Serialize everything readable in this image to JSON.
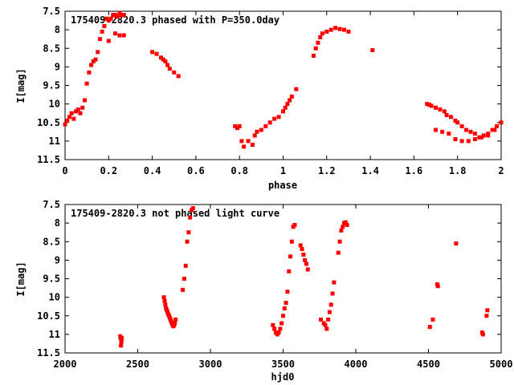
{
  "chart_data": [
    {
      "type": "scatter",
      "title": "175409-2820.3 phased with P=350.0day",
      "xlabel": "phase",
      "ylabel": "I[mag]",
      "xlim": [
        0,
        2
      ],
      "ylim": [
        7.5,
        11.5
      ],
      "y_inverted": true,
      "x_ticks": [
        "0",
        "0.2",
        "0.4",
        "0.6",
        "0.8",
        "1",
        "1.2",
        "1.4",
        "1.6",
        "1.8",
        "2"
      ],
      "y_ticks": [
        "7.5",
        "8",
        "8.5",
        "9",
        "9.5",
        "10",
        "10.5",
        "11",
        "11.5"
      ],
      "color": "#ff0000",
      "grid": false,
      "series": [
        {
          "x": [
            0.0,
            0.01,
            0.02,
            0.03,
            0.04,
            0.05,
            0.06,
            0.07,
            0.08,
            0.09,
            0.1,
            0.11,
            0.12,
            0.13,
            0.14,
            0.15,
            0.16,
            0.17,
            0.18,
            0.19,
            0.2,
            0.21,
            0.22,
            0.23,
            0.24,
            0.25,
            0.26,
            0.27,
            0.2,
            0.23,
            0.25,
            0.27,
            0.4,
            0.42,
            0.44,
            0.45,
            0.46,
            0.47,
            0.48,
            0.5,
            0.52,
            0.78,
            0.79,
            0.8,
            0.81,
            0.82,
            0.84,
            0.86,
            0.87,
            0.88,
            0.9,
            0.92,
            0.94,
            0.96,
            0.98,
            1.0,
            1.01,
            1.02,
            1.03,
            1.04,
            1.06,
            1.14,
            1.15,
            1.16,
            1.17,
            1.18,
            1.2,
            1.22,
            1.24,
            1.26,
            1.28,
            1.3,
            1.41,
            1.66,
            1.67,
            1.68,
            1.7,
            1.72,
            1.74,
            1.75,
            1.77,
            1.79,
            1.8,
            1.82,
            1.84,
            1.86,
            1.88,
            1.9,
            1.92,
            1.94,
            1.96,
            1.98,
            2.0,
            1.7,
            1.73,
            1.76,
            1.79,
            1.82,
            1.85,
            1.88,
            1.91,
            1.94,
            1.97
          ],
          "y": [
            10.55,
            10.45,
            10.35,
            10.25,
            10.4,
            10.2,
            10.15,
            10.25,
            10.1,
            9.9,
            9.45,
            9.15,
            8.95,
            8.85,
            8.8,
            8.6,
            8.25,
            8.05,
            7.9,
            7.7,
            7.75,
            7.7,
            7.6,
            7.6,
            7.65,
            7.55,
            7.6,
            7.6,
            8.3,
            8.1,
            8.15,
            8.15,
            8.6,
            8.65,
            8.75,
            8.8,
            8.85,
            8.95,
            9.05,
            9.15,
            9.25,
            10.6,
            10.65,
            10.6,
            11.0,
            11.15,
            11.0,
            11.1,
            10.85,
            10.75,
            10.7,
            10.6,
            10.5,
            10.4,
            10.35,
            10.2,
            10.1,
            10.0,
            9.9,
            9.8,
            9.6,
            8.7,
            8.5,
            8.35,
            8.2,
            8.1,
            8.05,
            8.0,
            7.95,
            7.98,
            8.0,
            8.05,
            8.55,
            10.0,
            10.02,
            10.05,
            10.1,
            10.15,
            10.2,
            10.3,
            10.35,
            10.45,
            10.5,
            10.6,
            10.7,
            10.75,
            10.8,
            10.9,
            10.85,
            10.8,
            10.7,
            10.6,
            10.5,
            10.7,
            10.75,
            10.8,
            10.95,
            11.0,
            11.0,
            10.95,
            10.9,
            10.85,
            10.7
          ]
        }
      ]
    },
    {
      "type": "scatter",
      "title": "175409-2820.3 not phased light curve",
      "xlabel": "hjd0",
      "ylabel": "I[mag]",
      "xlim": [
        2000,
        5000
      ],
      "ylim": [
        7.5,
        11.5
      ],
      "y_inverted": true,
      "x_ticks": [
        "2000",
        "2500",
        "3000",
        "3500",
        "4000",
        "4500",
        "5000"
      ],
      "y_ticks": [
        "7.5",
        "8",
        "8.5",
        "9",
        "9.5",
        "10",
        "10.5",
        "11",
        "11.5"
      ],
      "color": "#ff0000",
      "grid": false,
      "series": [
        {
          "x": [
            2380,
            2383,
            2386,
            2388,
            2390,
            2385,
            2680,
            2685,
            2690,
            2695,
            2700,
            2705,
            2710,
            2715,
            2720,
            2725,
            2730,
            2735,
            2740,
            2745,
            2750,
            2755,
            2760,
            2810,
            2820,
            2830,
            2840,
            2850,
            2860,
            2870,
            2880,
            3430,
            3440,
            3450,
            3460,
            3470,
            3480,
            3490,
            3500,
            3510,
            3520,
            3530,
            3540,
            3550,
            3560,
            3570,
            3580,
            3620,
            3630,
            3640,
            3650,
            3660,
            3670,
            3760,
            3780,
            3790,
            3800,
            3810,
            3820,
            3830,
            3840,
            3850,
            3880,
            3890,
            3900,
            3910,
            3920,
            3930,
            3940,
            4510,
            4530,
            4560,
            4565,
            4690,
            4870,
            4875,
            4900,
            4905
          ],
          "y": [
            11.05,
            11.1,
            11.15,
            11.2,
            11.1,
            11.3,
            10.0,
            10.1,
            10.2,
            10.3,
            10.35,
            10.4,
            10.45,
            10.5,
            10.55,
            10.6,
            10.65,
            10.7,
            10.75,
            10.78,
            10.75,
            10.7,
            10.6,
            9.8,
            9.5,
            9.15,
            8.5,
            8.25,
            7.85,
            7.65,
            7.6,
            10.75,
            10.85,
            10.95,
            11.0,
            10.95,
            10.85,
            10.7,
            10.5,
            10.3,
            10.15,
            9.85,
            9.3,
            8.9,
            8.5,
            8.1,
            8.05,
            8.6,
            8.7,
            8.85,
            9.0,
            9.1,
            9.25,
            10.6,
            10.7,
            10.75,
            10.85,
            10.6,
            10.4,
            10.2,
            9.9,
            9.6,
            8.8,
            8.5,
            8.2,
            8.1,
            8.0,
            7.98,
            8.05,
            10.8,
            10.6,
            9.65,
            9.7,
            8.55,
            10.95,
            11.0,
            10.5,
            10.35
          ]
        }
      ]
    }
  ]
}
